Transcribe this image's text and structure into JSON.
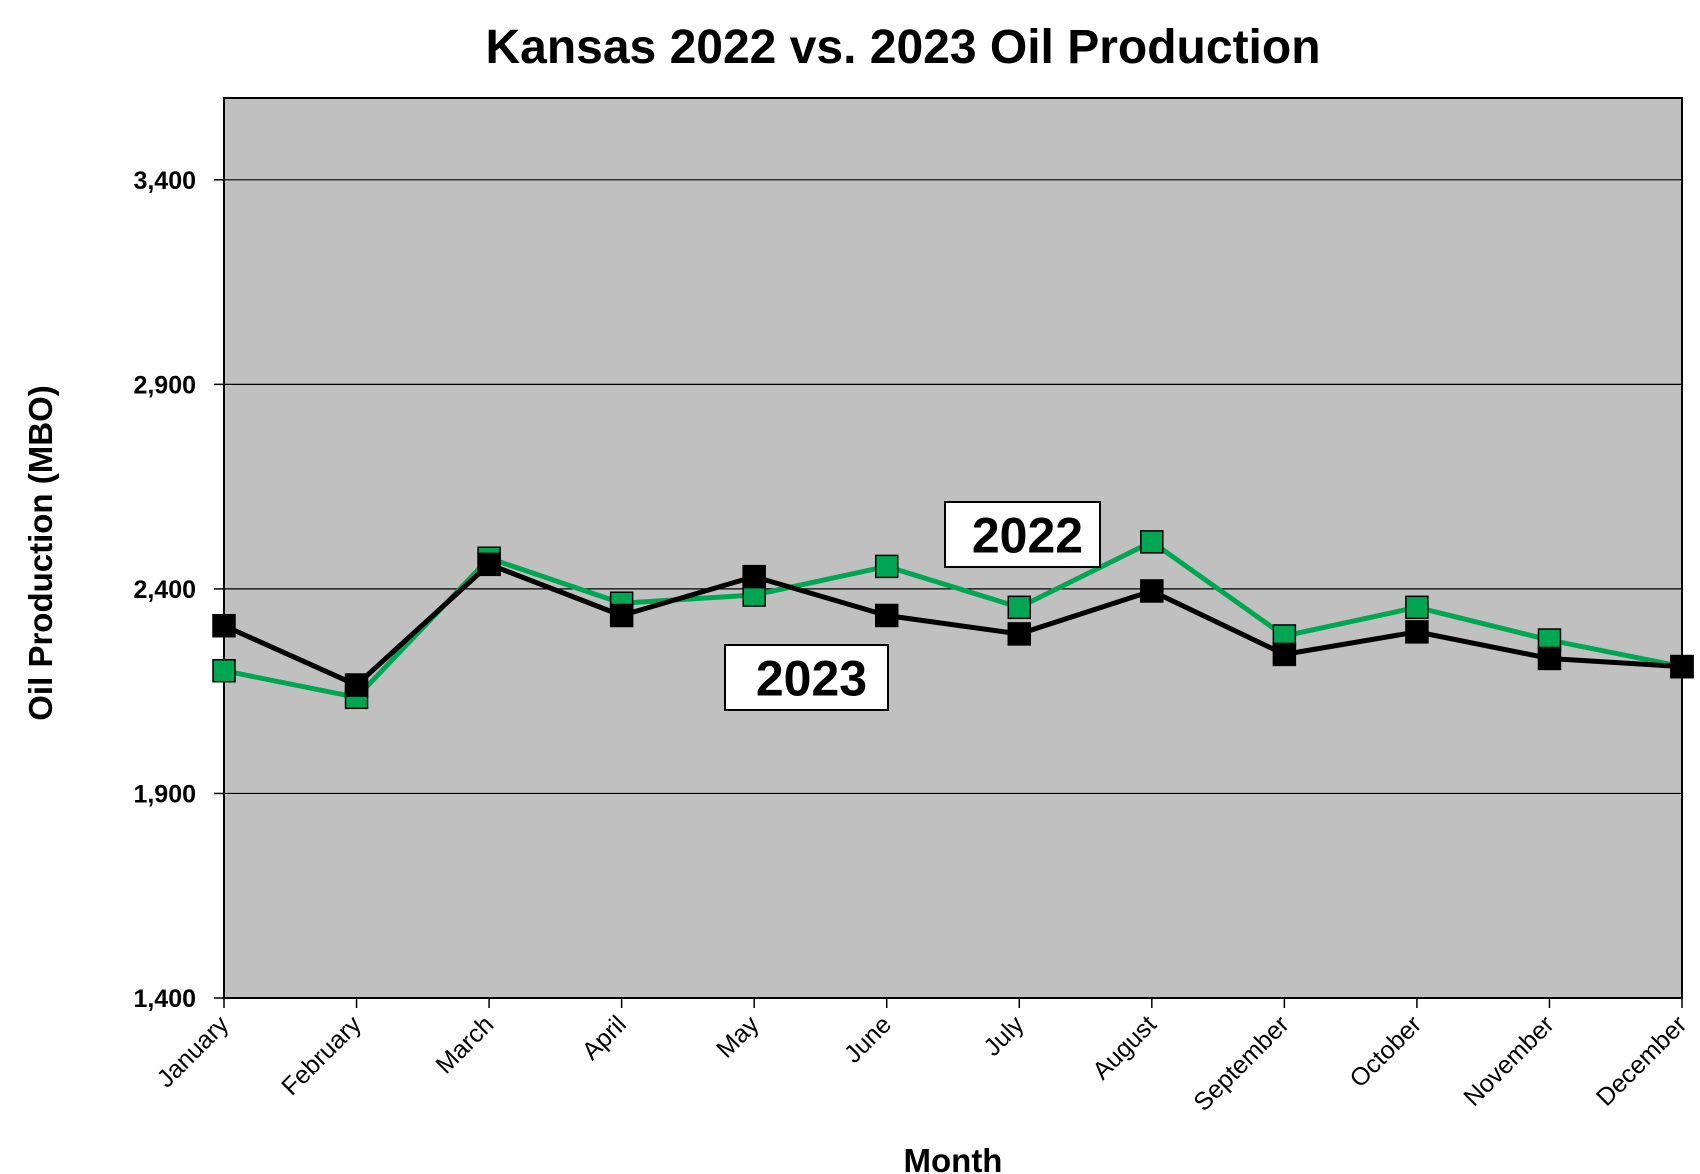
{
  "chart_data": {
    "type": "line",
    "title": "Kansas 2022 vs. 2023 Oil Production",
    "xlabel": "Month",
    "ylabel": "Oil Production (MBO)",
    "categories": [
      "January",
      "February",
      "March",
      "April",
      "May",
      "June",
      "July",
      "August",
      "September",
      "October",
      "November",
      "December"
    ],
    "ylim": [
      1400,
      3600
    ],
    "yticks": [
      1400,
      1900,
      2400,
      2900,
      3400
    ],
    "ytick_labels": [
      "1,400",
      "1,900",
      "2,400",
      "2,900",
      "3,400"
    ],
    "grid": true,
    "plot_background": "#c0c0c0",
    "series": [
      {
        "name": "2022",
        "color": "#00a651",
        "marker": "square",
        "values": [
          2200,
          2135,
          2475,
          2365,
          2385,
          2455,
          2355,
          2515,
          2285,
          2355,
          2275,
          2210
        ]
      },
      {
        "name": "2023",
        "color": "#000000",
        "marker": "square",
        "values": [
          2310,
          2165,
          2460,
          2335,
          2430,
          2335,
          2290,
          2395,
          2240,
          2295,
          2230,
          2210
        ]
      }
    ]
  }
}
